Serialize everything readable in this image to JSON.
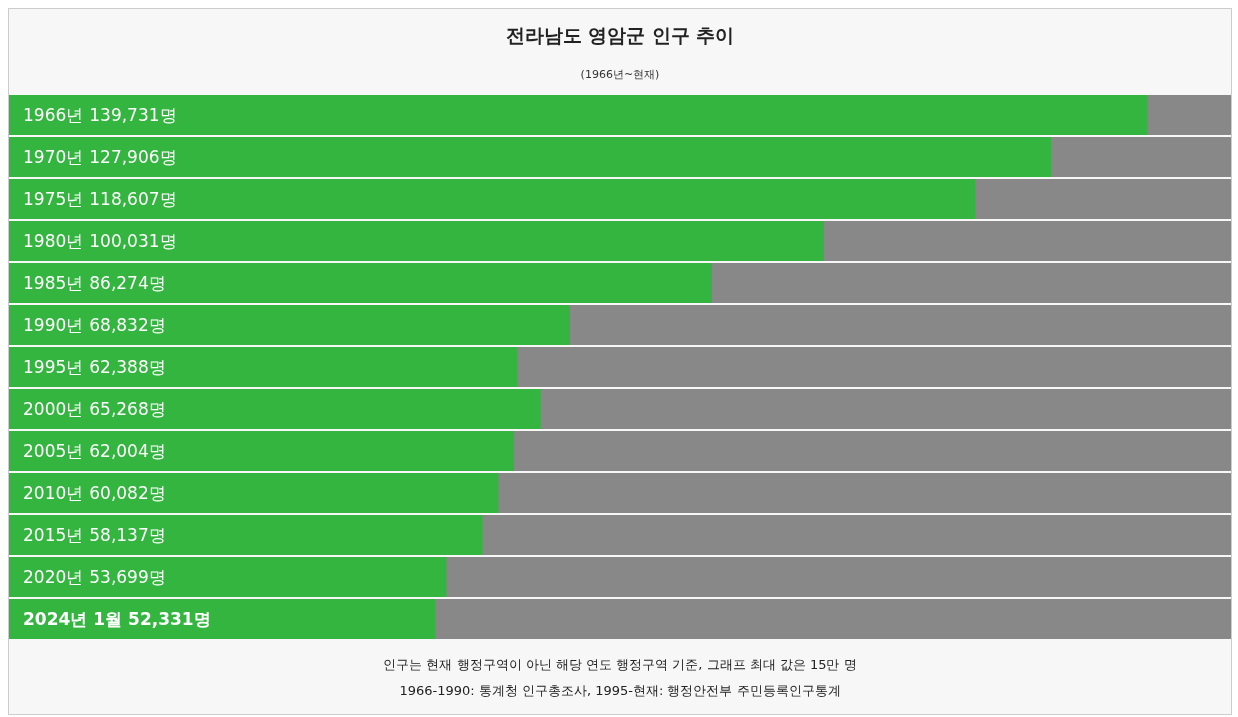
{
  "chart_data": {
    "type": "bar",
    "orientation": "horizontal",
    "title": "전라남도 영암군 인구 추이",
    "subtitle": "(1966년~현재)",
    "categories": [
      "1966년",
      "1970년",
      "1975년",
      "1980년",
      "1985년",
      "1990년",
      "1995년",
      "2000년",
      "2005년",
      "2010년",
      "2015년",
      "2020년",
      "2024년 1월"
    ],
    "values": [
      139731,
      127906,
      118607,
      100031,
      86274,
      68832,
      62388,
      65268,
      62004,
      60082,
      58137,
      53699,
      52331
    ],
    "value_labels": [
      "139,731명",
      "127,906명",
      "118,607명",
      "100,031명",
      "86,274명",
      "68,832명",
      "62,388명",
      "65,268명",
      "62,004명",
      "60,082명",
      "58,137명",
      "53,699명",
      "52,331명"
    ],
    "color": "#34b53f",
    "xlim": [
      0,
      150000
    ],
    "annotations": [
      "인구는 현재 행정구역이 아닌 해당 연도 행정구역 기준, 그래프 최대 값은 15만 명",
      "1966-1990: 통계청 인구총조사, 1995-현재: 행정안전부 주민등록인구통계"
    ]
  }
}
